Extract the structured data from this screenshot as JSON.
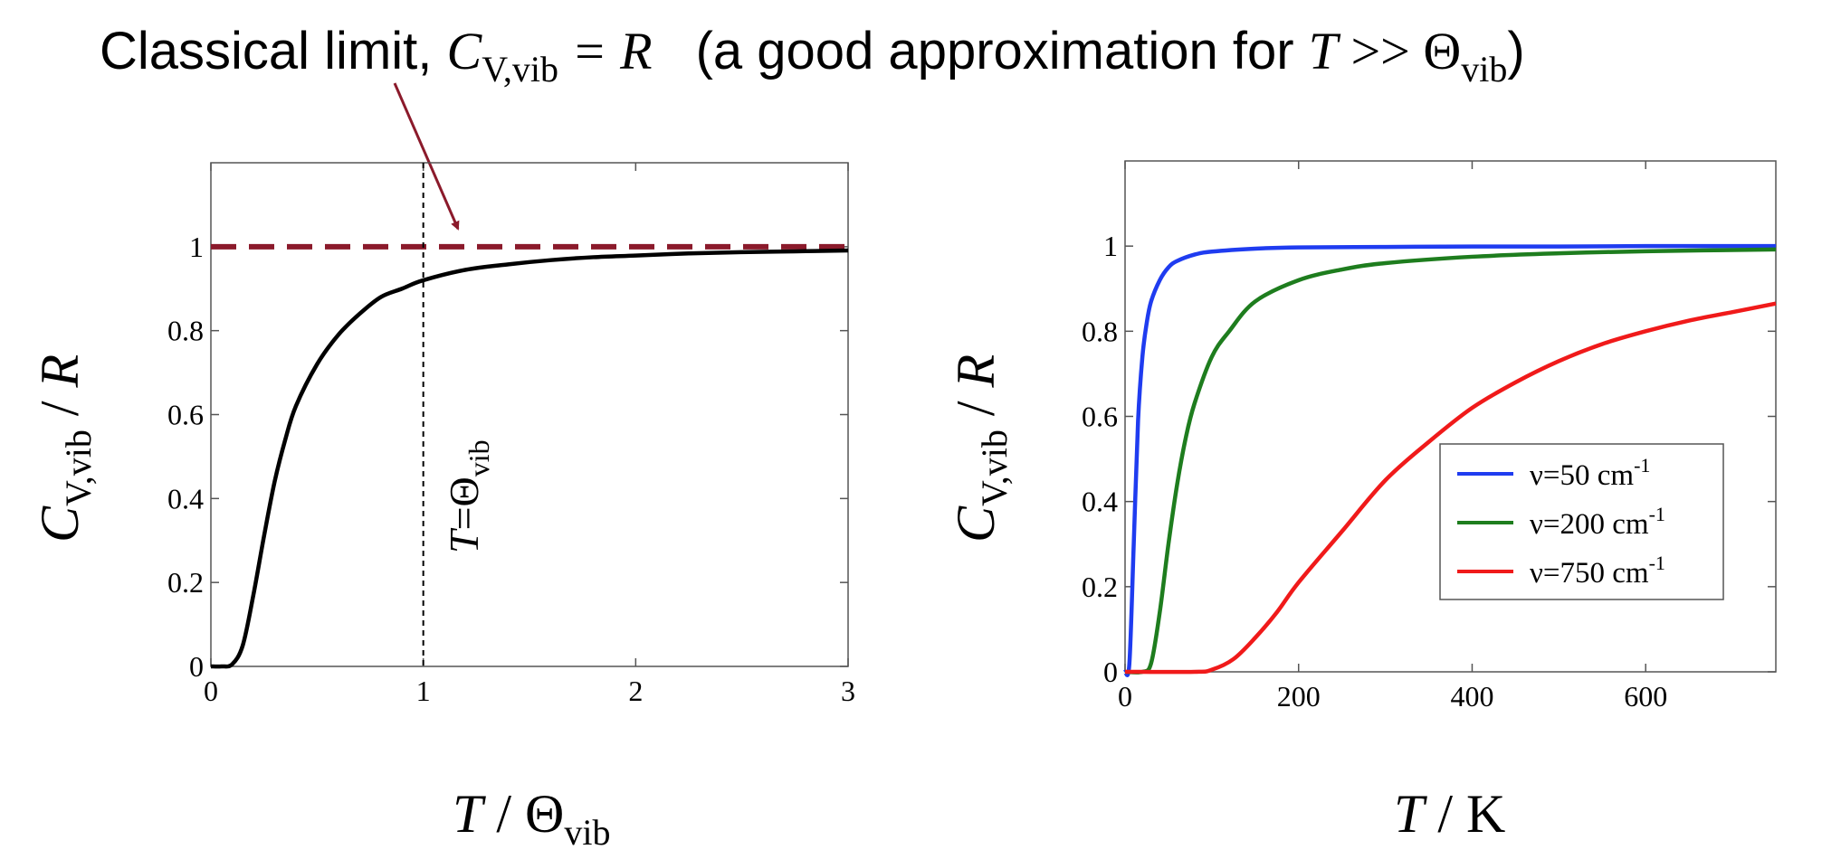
{
  "headline": {
    "prefix": "Classical limit, ",
    "eq_C": "C",
    "eq_sub": "V,vib",
    "eq_rhs": " = R",
    "paren_text": "(a good approximation for ",
    "cond_T": "T",
    "cond_op": " >> Θ",
    "cond_sub": "vib",
    "close": ")"
  },
  "colors": {
    "classical_limit": "#8b1a2b",
    "arrow": "#8b1a2b",
    "curve": "#000000",
    "blue": "#1f3cf0",
    "green": "#1e7d1e",
    "red": "#f01a1a"
  },
  "chart_data": [
    {
      "type": "line",
      "xlabel": {
        "italic": "T",
        "rest": " / Θ",
        "sub": "vib"
      },
      "ylabel": {
        "italic": "C",
        "sub": "V,vib",
        "rest": " / ",
        "italic2": "R"
      },
      "xlim": [
        0,
        3
      ],
      "ylim": [
        0,
        1.2
      ],
      "xticks": [
        "0",
        "1",
        "2",
        "3"
      ],
      "yticks": [
        "0",
        "0.2",
        "0.4",
        "0.6",
        "0.8",
        "1"
      ],
      "grid": false,
      "series": [
        {
          "style": "solid",
          "x": [
            0,
            0.05,
            0.1,
            0.15,
            0.2,
            0.25,
            0.3,
            0.35,
            0.4,
            0.5,
            0.6,
            0.7,
            0.8,
            0.9,
            1.0,
            1.2,
            1.4,
            1.6,
            1.8,
            2.0,
            2.25,
            2.5,
            2.75,
            3.0
          ],
          "y": [
            0,
            0,
            0.005,
            0.05,
            0.17,
            0.31,
            0.44,
            0.54,
            0.62,
            0.72,
            0.79,
            0.84,
            0.88,
            0.9,
            0.92,
            0.945,
            0.958,
            0.968,
            0.975,
            0.979,
            0.984,
            0.987,
            0.989,
            0.991
          ]
        }
      ],
      "hlines": [
        {
          "y": 1,
          "style": "dashed",
          "color_key": "classical_limit"
        }
      ],
      "vlines": [
        {
          "x": 1,
          "style": "dotted"
        }
      ],
      "annotation": {
        "italic": "T",
        "rest": "=Θ",
        "sub": "vib"
      }
    },
    {
      "type": "line",
      "xlabel": {
        "italic": "T",
        "rest": " / K"
      },
      "ylabel": {
        "italic": "C",
        "sub": "V,vib",
        "rest": " / ",
        "italic2": "R"
      },
      "xlim": [
        0,
        750
      ],
      "ylim": [
        0,
        1.2
      ],
      "xticks": [
        "0",
        "200",
        "400",
        "600"
      ],
      "yticks": [
        "0",
        "0.2",
        "0.4",
        "0.6",
        "0.8",
        "1"
      ],
      "grid": false,
      "legend": {
        "placement": "lower-right"
      },
      "series": [
        {
          "name": "ν=50 cm",
          "name_sup": "-1",
          "color_key": "blue",
          "x": [
            0,
            5,
            10,
            15,
            20,
            25,
            30,
            40,
            50,
            60,
            80,
            100,
            150,
            200,
            300,
            400,
            500,
            600,
            750
          ],
          "y": [
            0,
            0.02,
            0.3,
            0.59,
            0.74,
            0.82,
            0.87,
            0.92,
            0.95,
            0.965,
            0.98,
            0.987,
            0.994,
            0.997,
            0.998,
            0.999,
            0.999,
            1.0,
            1.0
          ]
        },
        {
          "name": "ν=200 cm",
          "name_sup": "-1",
          "color_key": "green",
          "x": [
            0,
            20,
            30,
            40,
            50,
            60,
            70,
            80,
            100,
            120,
            150,
            200,
            250,
            300,
            400,
            500,
            600,
            750
          ],
          "y": [
            0,
            0,
            0.02,
            0.14,
            0.3,
            0.44,
            0.55,
            0.63,
            0.74,
            0.8,
            0.87,
            0.92,
            0.945,
            0.96,
            0.975,
            0.983,
            0.988,
            0.992
          ]
        },
        {
          "name": "ν=750 cm",
          "name_sup": "-1",
          "color_key": "red",
          "x": [
            0,
            80,
            100,
            125,
            150,
            175,
            200,
            250,
            300,
            350,
            400,
            450,
            500,
            550,
            600,
            650,
            700,
            750
          ],
          "y": [
            0,
            0,
            0.005,
            0.03,
            0.08,
            0.14,
            0.21,
            0.33,
            0.45,
            0.54,
            0.62,
            0.68,
            0.73,
            0.77,
            0.8,
            0.825,
            0.845,
            0.865
          ]
        }
      ]
    }
  ]
}
